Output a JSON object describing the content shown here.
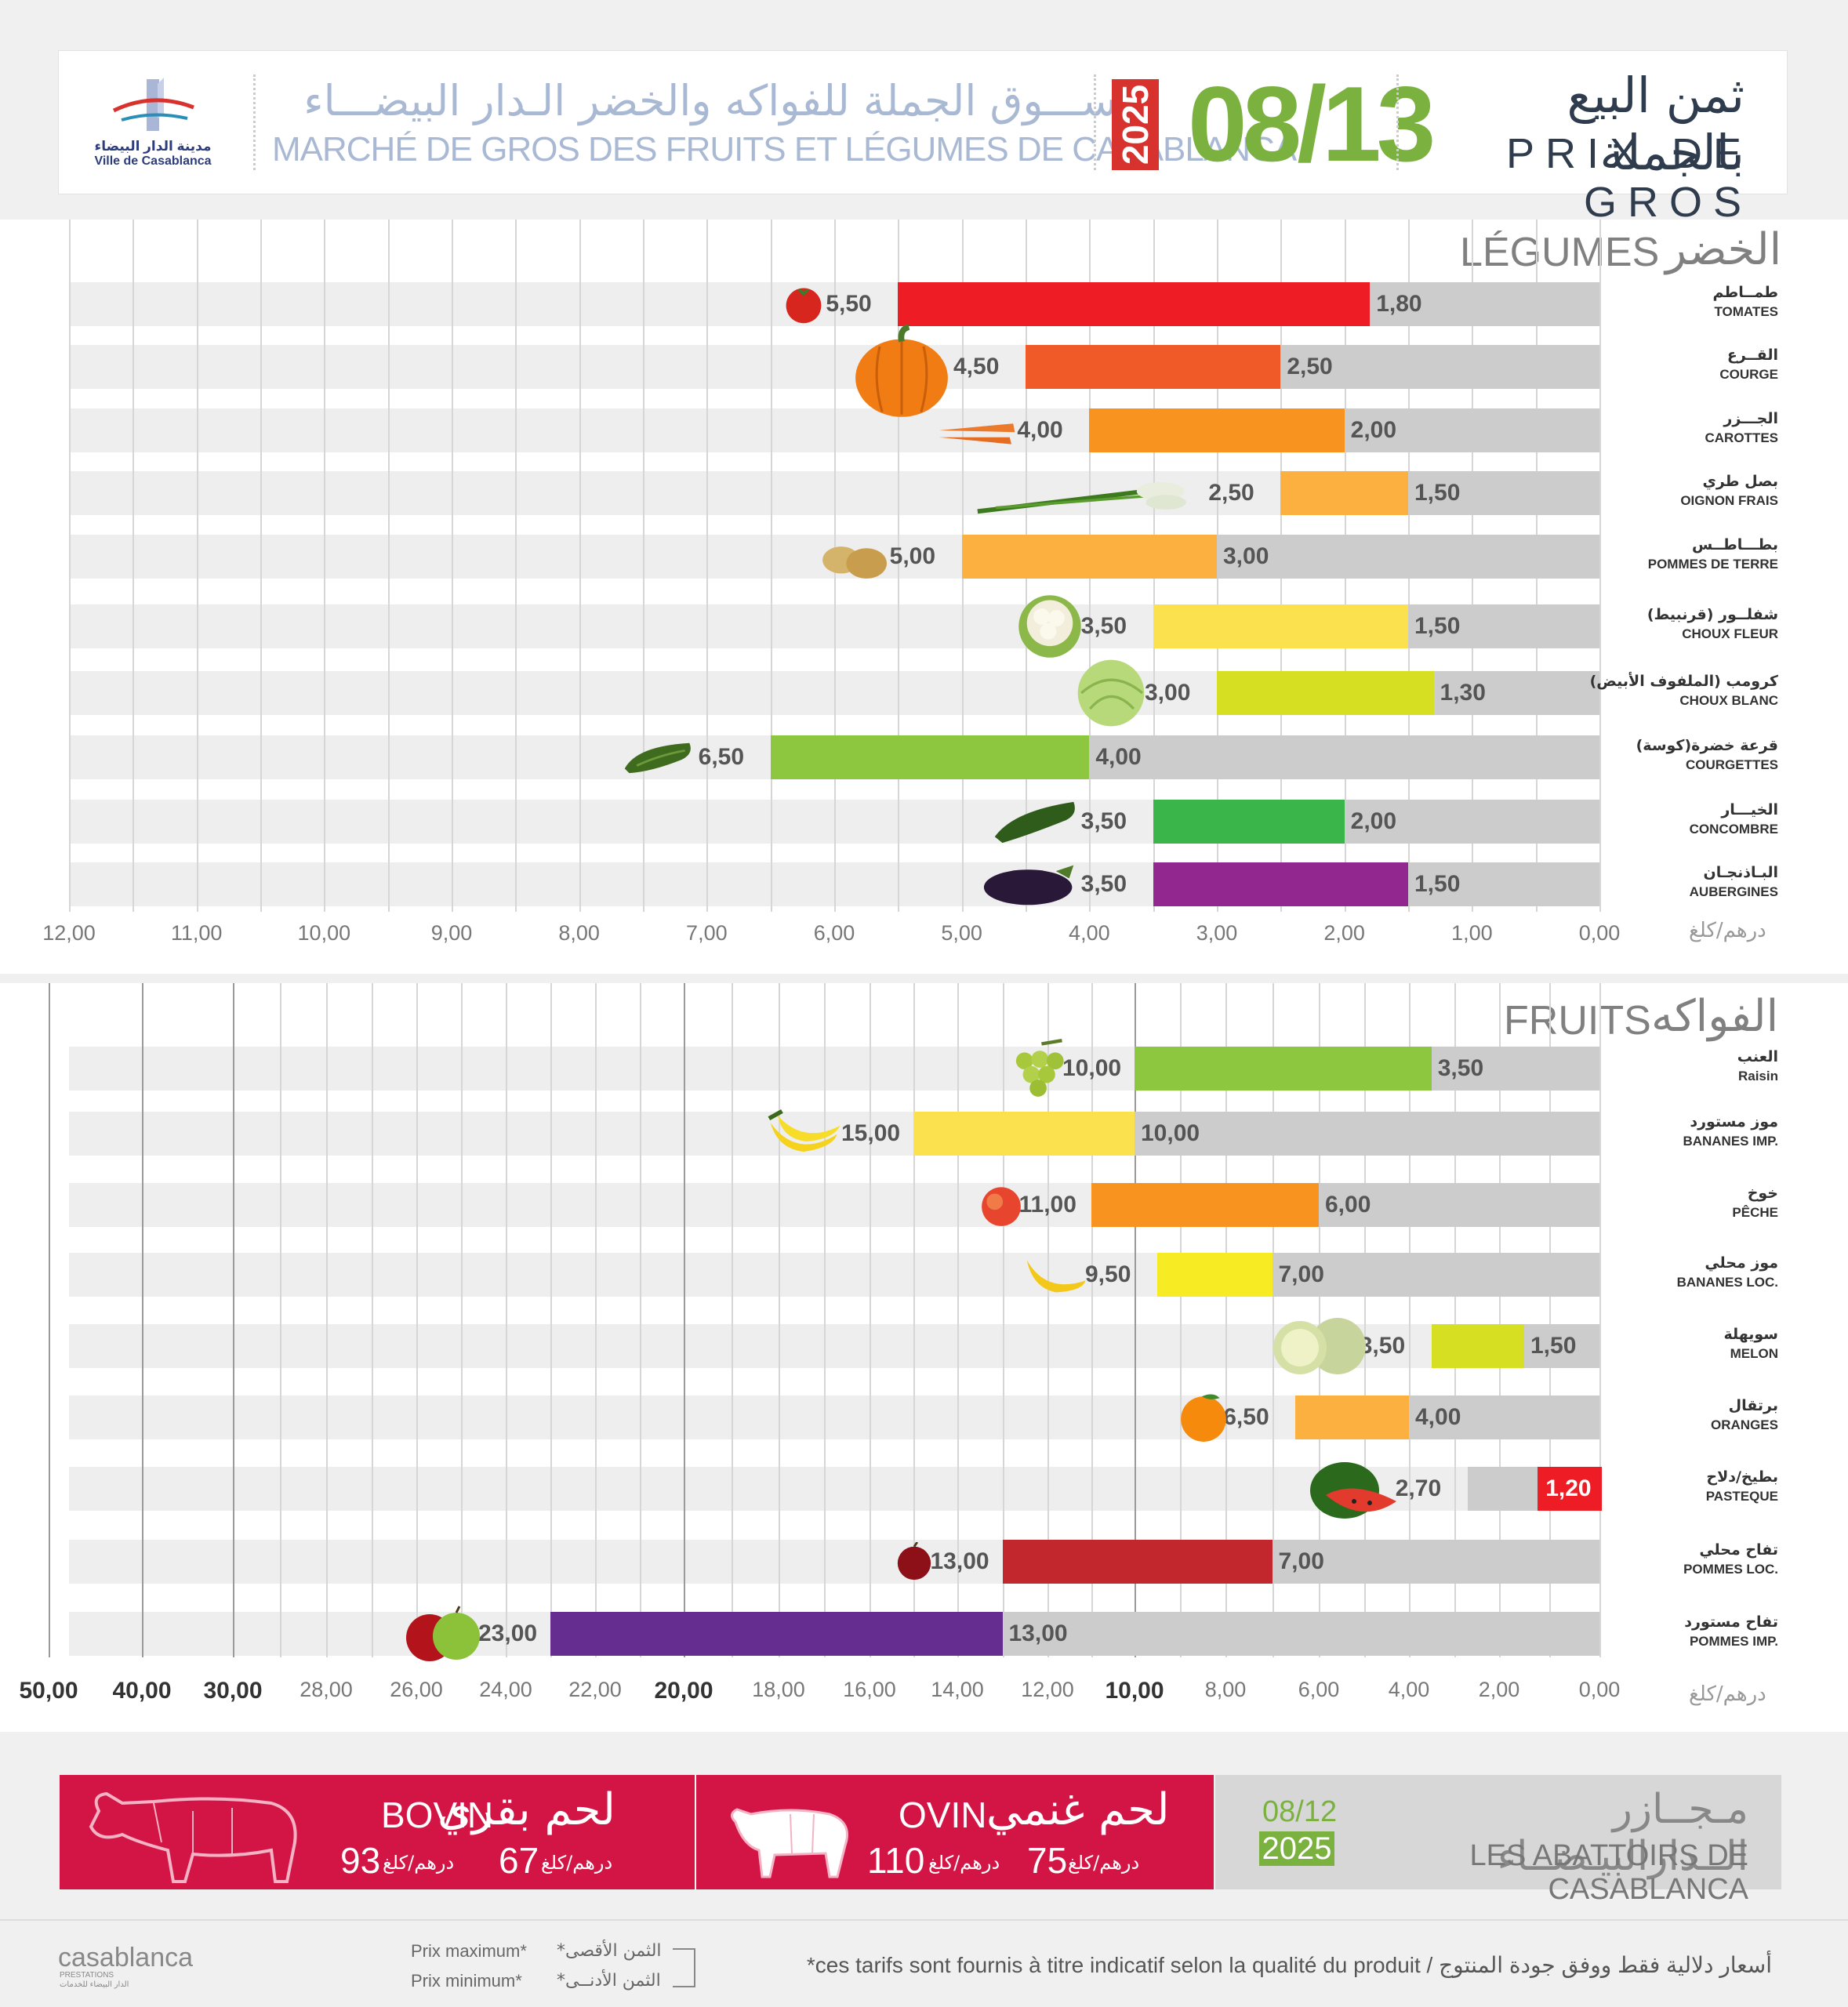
{
  "header": {
    "logo_ar": "مدينة الدار البيضاء",
    "logo_fr": "Ville de Casablanca",
    "market_ar": "ســـوق الجملة للفواكه والخضر الـدار البيضـــاء",
    "market_fr": "MARCHÉ DE GROS DES FRUITS ET LÉGUMES DE CASABLANCA",
    "year": "2025",
    "date": "08/13",
    "title_ar": "ثمن البيع بالجملة",
    "title_fr": "PRIX DE GROS"
  },
  "colors": {
    "accent_green": "#7bb23f",
    "accent_red": "#d8322f",
    "meat_red": "#d31546",
    "min_bar": "#cccccc"
  },
  "vegetables": {
    "title_fr": "LÉGUMES",
    "title_ar": "الخضر",
    "unit": "درهم/كلغ"
  },
  "fruits": {
    "title_fr": "FRUITS",
    "title_ar": "الفواكه",
    "unit": "درهم/كلغ"
  },
  "chart_data": [
    {
      "type": "bar",
      "orientation": "horizontal",
      "title": "LÉGUMES / الخضر",
      "xlabel": "درهم/كلغ",
      "x_reversed": true,
      "xlim": [
        0,
        12
      ],
      "grid": true,
      "x_ticks": [
        "12,00",
        "11,00",
        "10,00",
        "9,00",
        "8,00",
        "7,00",
        "6,00",
        "5,00",
        "4,00",
        "3,00",
        "2,00",
        "1,00",
        "0,00"
      ],
      "x_tick_values": [
        12,
        11,
        10,
        9,
        8,
        7,
        6,
        5,
        4,
        3,
        2,
        1,
        0
      ],
      "categories": [
        {
          "ar": "طمــاطم",
          "fr": "TOMATES",
          "color": "#ee1c25",
          "icon": "tomato-icon"
        },
        {
          "ar": "القــرع",
          "fr": "COURGE",
          "color": "#f05a28",
          "icon": "pumpkin-icon"
        },
        {
          "ar": "الجـــزر",
          "fr": "CAROTTES",
          "color": "#f7931e",
          "icon": "carrot-icon"
        },
        {
          "ar": "بصل طري",
          "fr": "OIGNON FRAIS",
          "color": "#fbb040",
          "icon": "onion-icon"
        },
        {
          "ar": "بطـــاطــس",
          "fr": "POMMES DE TERRE",
          "color": "#fbb040",
          "icon": "potato-icon"
        },
        {
          "ar": "شفلــور (قرنبيط)",
          "fr": "CHOUX FLEUR",
          "color": "#fce14e",
          "icon": "cauliflower-icon"
        },
        {
          "ar": "كرومب (الملفوف الأبيض)",
          "fr": "CHOUX BLANC",
          "color": "#d7df23",
          "icon": "cabbage-icon"
        },
        {
          "ar": "قرعة خضرة(كوسة)",
          "fr": "COURGETTES",
          "color": "#8dc63f",
          "icon": "zucchini-icon"
        },
        {
          "ar": "الخيـــار",
          "fr": "CONCOMBRE",
          "color": "#39b54a",
          "icon": "cucumber-icon"
        },
        {
          "ar": "البـاذنجـان",
          "fr": "AUBERGINES",
          "color": "#92278f",
          "icon": "eggplant-icon"
        }
      ],
      "series": [
        {
          "name": "Prix maximum",
          "values": [
            5.5,
            4.5,
            4.0,
            2.5,
            5.0,
            3.5,
            3.0,
            6.5,
            3.5,
            3.5
          ],
          "labels": [
            "5,50",
            "4,50",
            "4,00",
            "2,50",
            "5,00",
            "3,50",
            "3,00",
            "6,50",
            "3,50",
            "3,50"
          ]
        },
        {
          "name": "Prix minimum",
          "values": [
            1.8,
            2.5,
            2.0,
            1.5,
            3.0,
            1.5,
            1.3,
            4.0,
            2.0,
            1.5
          ],
          "labels": [
            "1,80",
            "2,50",
            "2,00",
            "1,50",
            "3,00",
            "1,50",
            "1,30",
            "4,00",
            "2,00",
            "1,50"
          ]
        }
      ]
    },
    {
      "type": "bar",
      "orientation": "horizontal",
      "title": "FRUITS / الفواكه",
      "xlabel": "درهم/كلغ",
      "x_reversed": true,
      "x_scale": "piecewise",
      "grid": true,
      "x_ticks": [
        "50,00",
        "40,00",
        "30,00",
        "28,00",
        "26,00",
        "24,00",
        "22,00",
        "20,00",
        "18,00",
        "16,00",
        "14,00",
        "12,00",
        "10,00",
        "8,00",
        "6,00",
        "4,00",
        "2,00",
        "0,00"
      ],
      "x_tick_values": [
        50,
        40,
        30,
        28,
        26,
        24,
        22,
        20,
        18,
        16,
        14,
        12,
        10,
        8,
        6,
        4,
        2,
        0
      ],
      "x_ticks_bold": [
        true,
        true,
        true,
        false,
        false,
        false,
        false,
        true,
        false,
        false,
        false,
        false,
        true,
        false,
        false,
        false,
        false,
        false
      ],
      "categories": [
        {
          "ar": "العنب",
          "fr": "Raisin",
          "color": "#8dc63f",
          "icon": "grapes-icon"
        },
        {
          "ar": "موز مستورد",
          "fr": "BANANES IMP.",
          "color": "#fce14e",
          "icon": "banana-bunch-icon"
        },
        {
          "ar": "خوخ",
          "fr": "PÊCHE",
          "color": "#f7931e",
          "icon": "peach-icon"
        },
        {
          "ar": "موز محلي",
          "fr": "BANANES LOC.",
          "color": "#f7ec23",
          "icon": "banana-icon"
        },
        {
          "ar": "سويهلة",
          "fr": "MELON",
          "color": "#d7df23",
          "icon": "melon-icon"
        },
        {
          "ar": "برتقال",
          "fr": "ORANGES",
          "color": "#fbb040",
          "icon": "orange-icon"
        },
        {
          "ar": "بطيخ/دلاح",
          "fr": "PASTEQUE",
          "color": "#ee1c25",
          "icon": "watermelon-icon"
        },
        {
          "ar": "تفاح محلي",
          "fr": "POMMES LOC.",
          "color": "#c1272d",
          "icon": "apple-red-icon"
        },
        {
          "ar": "تفاح مستورد",
          "fr": "POMMES IMP.",
          "color": "#662d91",
          "icon": "apples-icon"
        }
      ],
      "series": [
        {
          "name": "Prix maximum",
          "values": [
            10.0,
            15.0,
            11.0,
            9.5,
            3.5,
            6.5,
            2.7,
            13.0,
            23.0
          ],
          "labels": [
            "10,00",
            "15,00",
            "11,00",
            "9,50",
            "3,50",
            "6,50",
            "2,70",
            "13,00",
            "23,00"
          ]
        },
        {
          "name": "Prix minimum",
          "values": [
            3.5,
            10.0,
            6.0,
            7.0,
            1.5,
            4.0,
            1.2,
            7.0,
            13.0
          ],
          "labels": [
            "3,50",
            "10,00",
            "6,00",
            "7,00",
            "1,50",
            "4,00",
            "1,20",
            "7,00",
            "13,00"
          ]
        }
      ]
    }
  ],
  "meat": {
    "bovin": {
      "fr": "BOVIN",
      "ar": "لحم بقري",
      "max": "93",
      "min": "67",
      "unit": "درهم/كلغ"
    },
    "ovin": {
      "fr": "OVIN",
      "ar": "لحم غنمي",
      "max": "110",
      "min": "75",
      "unit": "درهم/كلغ"
    },
    "abattoir": {
      "date": "08/12",
      "year": "2025",
      "ar": "مـجــازر الــدارالبيـضــاء",
      "fr": "LES ABATTOIRS DE CASABLANCA"
    }
  },
  "footer": {
    "logo": "casablanca",
    "logo_sub1": "PRESTATIONS",
    "logo_sub2": "الدار البيضاء للخدمات",
    "legend_max_fr": "Prix maximum*",
    "legend_min_fr": "Prix minimum*",
    "legend_max_ar": "*الثمن الأقصى",
    "legend_min_ar": "*الثمن الأدنــى",
    "note": "*ces tarifs sont fournis à titre indicatif selon la qualité du produit  /  أسعار دلالية فقط ووفق جودة المنتوج"
  }
}
